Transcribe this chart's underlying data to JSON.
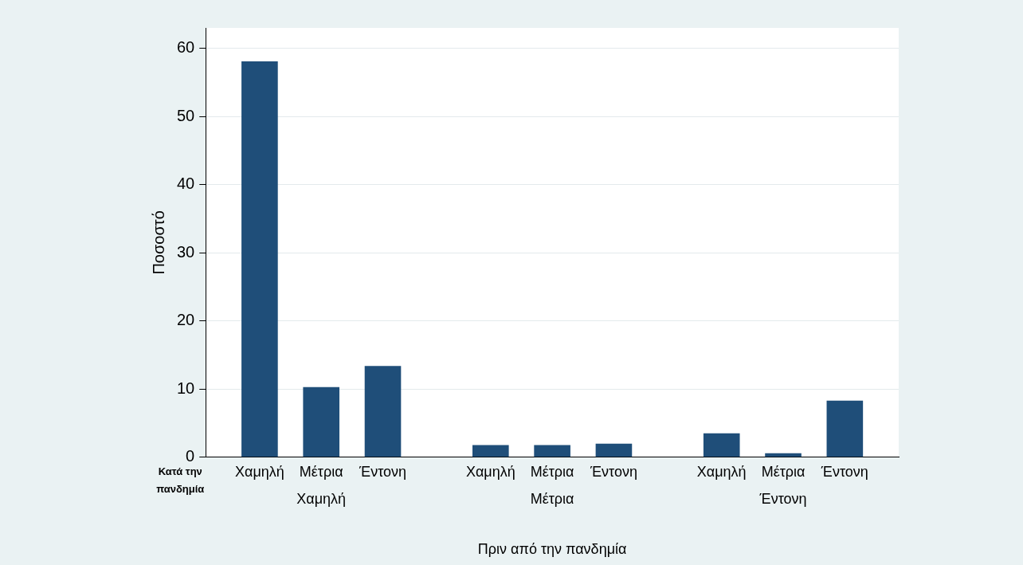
{
  "chart_data": {
    "type": "bar",
    "ylabel": "Ποσοστό",
    "xlabel": "Πριν από την πανδημία",
    "legend_title": "Κατά την πανδημία",
    "categories": [
      "Χαμηλή",
      "Μέτρια",
      "Έντονη"
    ],
    "series": [
      {
        "name": "Χαμηλή",
        "color": "#1f4e79",
        "values": [
          58.1,
          1.8,
          3.5
        ]
      },
      {
        "name": "Μέτρια",
        "color": "#1f4e79",
        "values": [
          10.3,
          1.8,
          0.6
        ]
      },
      {
        "name": "Έντονη",
        "color": "#1f4e79",
        "values": [
          13.4,
          2.0,
          8.3
        ]
      }
    ],
    "ylim": [
      0,
      63
    ],
    "yticks": [
      0,
      10,
      20,
      30,
      40,
      50,
      60
    ],
    "grid": "y",
    "legend": false
  }
}
